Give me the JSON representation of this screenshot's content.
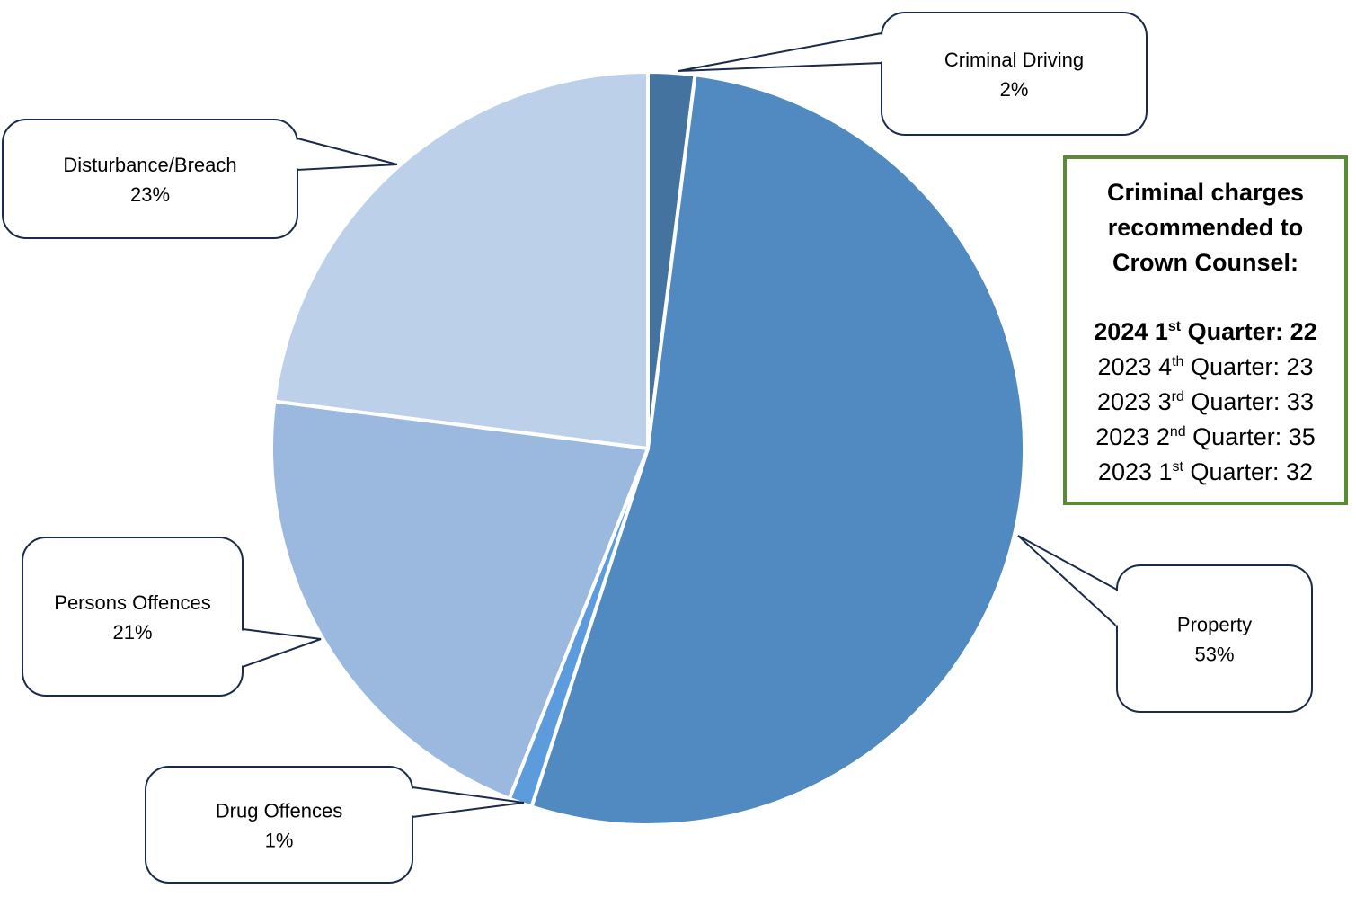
{
  "chart_data": {
    "type": "pie",
    "slices": [
      {
        "label": "Criminal Driving",
        "value": 2,
        "value_label": "2%",
        "color": "#44739f"
      },
      {
        "label": "Property",
        "value": 53,
        "value_label": "53%",
        "color": "#508ac0"
      },
      {
        "label": "Drug Offences",
        "value": 1,
        "value_label": "1%",
        "color": "#5d9cdc"
      },
      {
        "label": "Persons Offences",
        "value": 21,
        "value_label": "21%",
        "color": "#9bb9df"
      },
      {
        "label": "Disturbance/Breach",
        "value": 23,
        "value_label": "23%",
        "color": "#bdd0e9"
      }
    ],
    "callout_border_color": "#1b2a4a"
  },
  "info_box": {
    "title": "Criminal charges recommended to Crown Counsel:",
    "border_color": "#5b8a35",
    "lines": [
      {
        "year": "2024",
        "num": "1",
        "suffix": "st",
        "rest": " Quarter: 22",
        "bold": true
      },
      {
        "year": "2023",
        "num": "4",
        "suffix": "th",
        "rest": " Quarter: 23",
        "bold": false
      },
      {
        "year": "2023",
        "num": "3",
        "suffix": "rd",
        "rest": " Quarter: 33",
        "bold": false
      },
      {
        "year": "2023",
        "num": "2",
        "suffix": "nd",
        "rest": " Quarter: 35",
        "bold": false
      },
      {
        "year": "2023",
        "num": "1",
        "suffix": "st",
        "rest": " Quarter: 32",
        "bold": false
      }
    ]
  }
}
